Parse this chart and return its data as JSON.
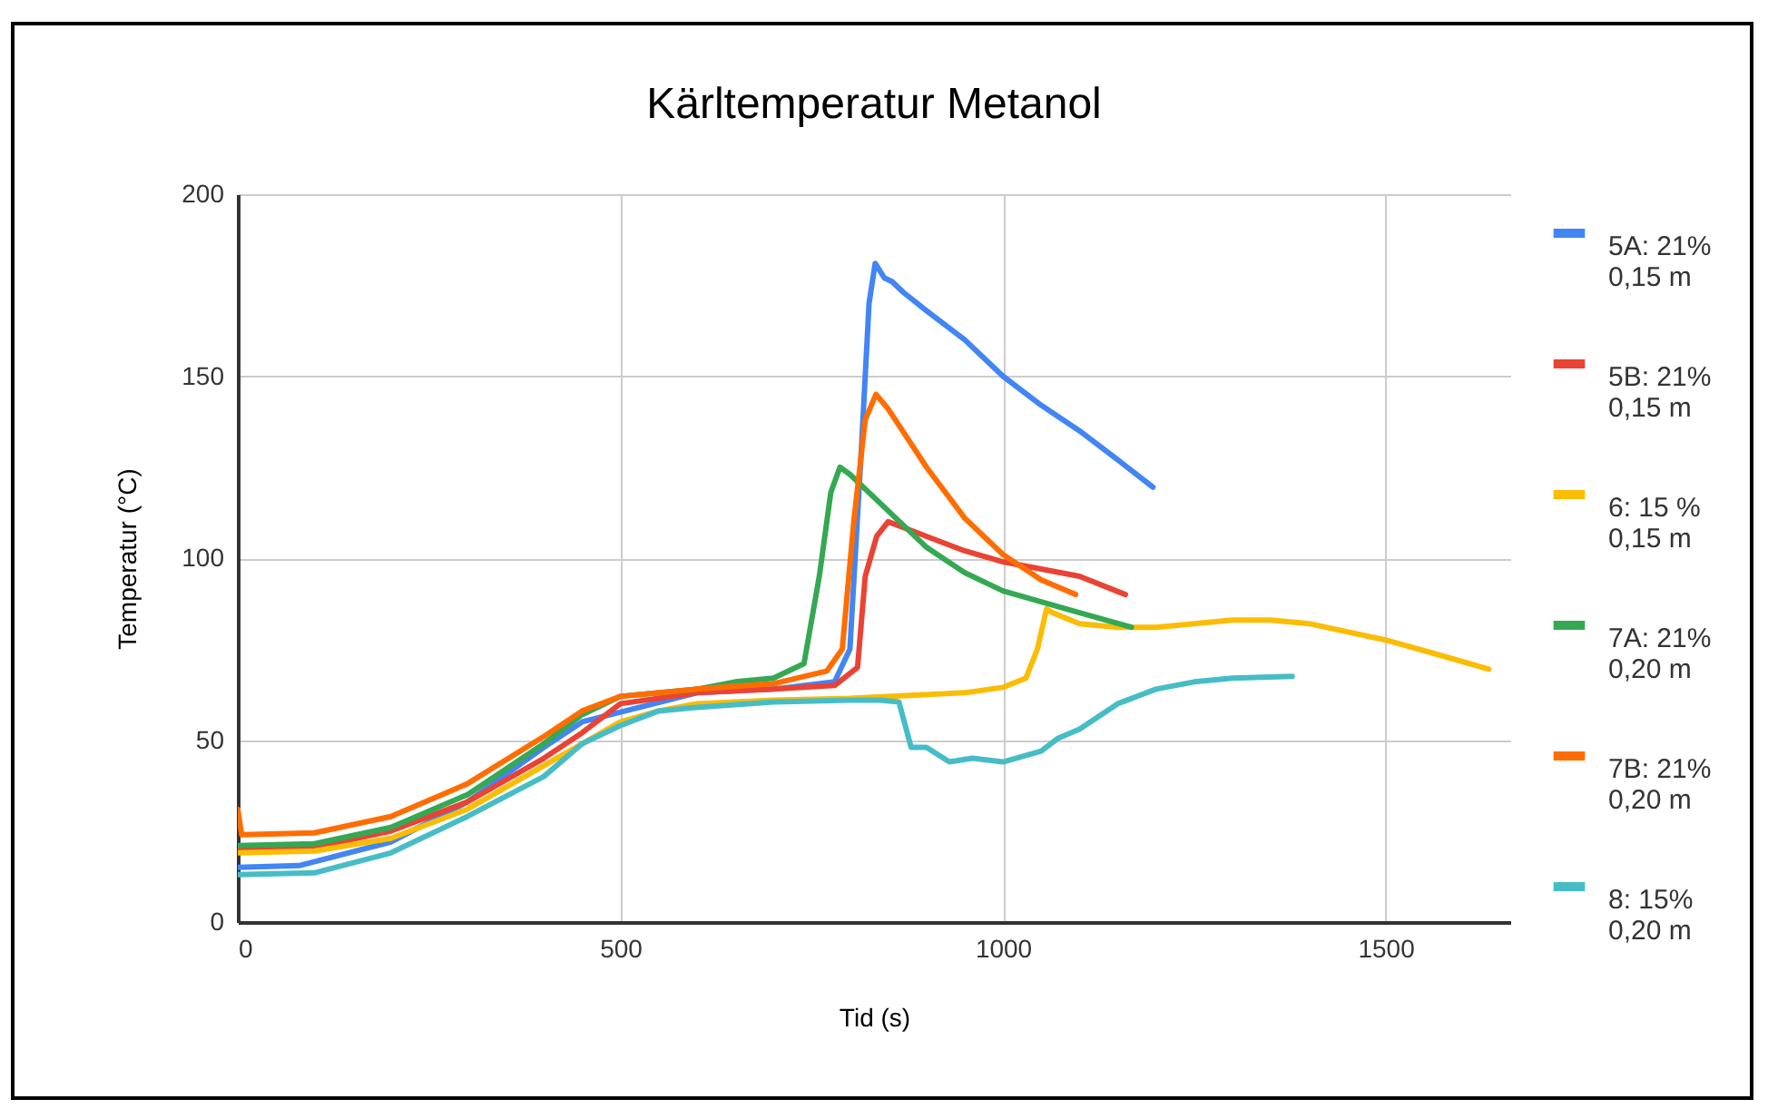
{
  "chart_data": {
    "type": "line",
    "title": "Kärltemperatur Metanol",
    "xlabel": "Tid (s)",
    "ylabel": "Temperatur (°C)",
    "xlim": [
      0,
      1663
    ],
    "xticks": [
      0,
      500,
      1000,
      1500
    ],
    "ylim": [
      0,
      200
    ],
    "yticks": [
      0,
      50,
      100,
      150,
      200
    ],
    "grid": true,
    "legend": "right",
    "series": [
      {
        "name": "5A: 21%\n0,15 m",
        "color": "#4285f4",
        "x": [
          0,
          80,
          200,
          300,
          400,
          450,
          600,
          700,
          780,
          800,
          815,
          825,
          833,
          845,
          855,
          870,
          900,
          950,
          1000,
          1050,
          1100,
          1150,
          1196
        ],
        "values": [
          15,
          15.5,
          22,
          33,
          48,
          55,
          63,
          64,
          66,
          75,
          130,
          170,
          181,
          177,
          176,
          173,
          168,
          160,
          150,
          142,
          135,
          127,
          119.5
        ]
      },
      {
        "name": "5B: 21%\n0,15 m",
        "color": "#ea4335",
        "x": [
          0,
          100,
          200,
          300,
          400,
          450,
          500,
          600,
          700,
          780,
          810,
          820,
          835,
          850,
          900,
          950,
          1000,
          1050,
          1100,
          1160
        ],
        "values": [
          20,
          20.5,
          25,
          33,
          45,
          52,
          60,
          63,
          64,
          65,
          70,
          95,
          106,
          110,
          106,
          102,
          99,
          97,
          95,
          90
        ]
      },
      {
        "name": "6: 15 %\n0,15 m",
        "color": "#fbbc04",
        "x": [
          0,
          100,
          200,
          300,
          400,
          450,
          500,
          550,
          600,
          700,
          800,
          900,
          950,
          1000,
          1030,
          1045,
          1057,
          1065,
          1100,
          1150,
          1200,
          1300,
          1350,
          1400,
          1500,
          1560,
          1635
        ],
        "values": [
          19,
          19.5,
          23,
          31,
          43,
          49,
          55,
          58,
          60,
          61,
          61.5,
          62.5,
          63,
          64.5,
          67,
          75,
          86,
          85,
          82,
          81,
          81,
          83,
          83,
          82,
          77.5,
          74,
          69.5
        ]
      },
      {
        "name": "7A: 21%\n0,20 m",
        "color": "#34a853",
        "x": [
          0,
          100,
          200,
          300,
          400,
          450,
          500,
          600,
          650,
          700,
          740,
          760,
          775,
          787,
          800,
          850,
          900,
          950,
          1000,
          1050,
          1100,
          1168
        ],
        "values": [
          21,
          21.5,
          26,
          35,
          49,
          57,
          62,
          64,
          66,
          67,
          71,
          95,
          118,
          125,
          123,
          113,
          103,
          96,
          91,
          88,
          85,
          81
        ]
      },
      {
        "name": "7B: 21%\n0,20 m",
        "color": "#ff6d01",
        "x": [
          0,
          5,
          100,
          200,
          300,
          400,
          450,
          500,
          600,
          700,
          770,
          790,
          805,
          820,
          834,
          850,
          900,
          950,
          1000,
          1050,
          1095
        ],
        "values": [
          31,
          24,
          24.5,
          29,
          38,
          51,
          58,
          62,
          64,
          65.5,
          69,
          75,
          110,
          138,
          145,
          141,
          125,
          111,
          101,
          94,
          90
        ]
      },
      {
        "name": "8: 15%\n0,20 m",
        "color": "#46bdc6",
        "x": [
          0,
          100,
          200,
          300,
          400,
          450,
          500,
          550,
          600,
          700,
          800,
          840,
          864,
          880,
          900,
          930,
          960,
          1000,
          1050,
          1072,
          1100,
          1150,
          1200,
          1250,
          1300,
          1378
        ],
        "values": [
          13,
          13.5,
          19,
          29,
          40,
          49,
          54,
          58,
          59,
          60.5,
          61,
          61,
          60.5,
          48,
          48,
          44,
          45,
          44,
          47,
          50.5,
          53,
          60,
          64,
          66,
          67,
          67.5
        ]
      }
    ]
  }
}
